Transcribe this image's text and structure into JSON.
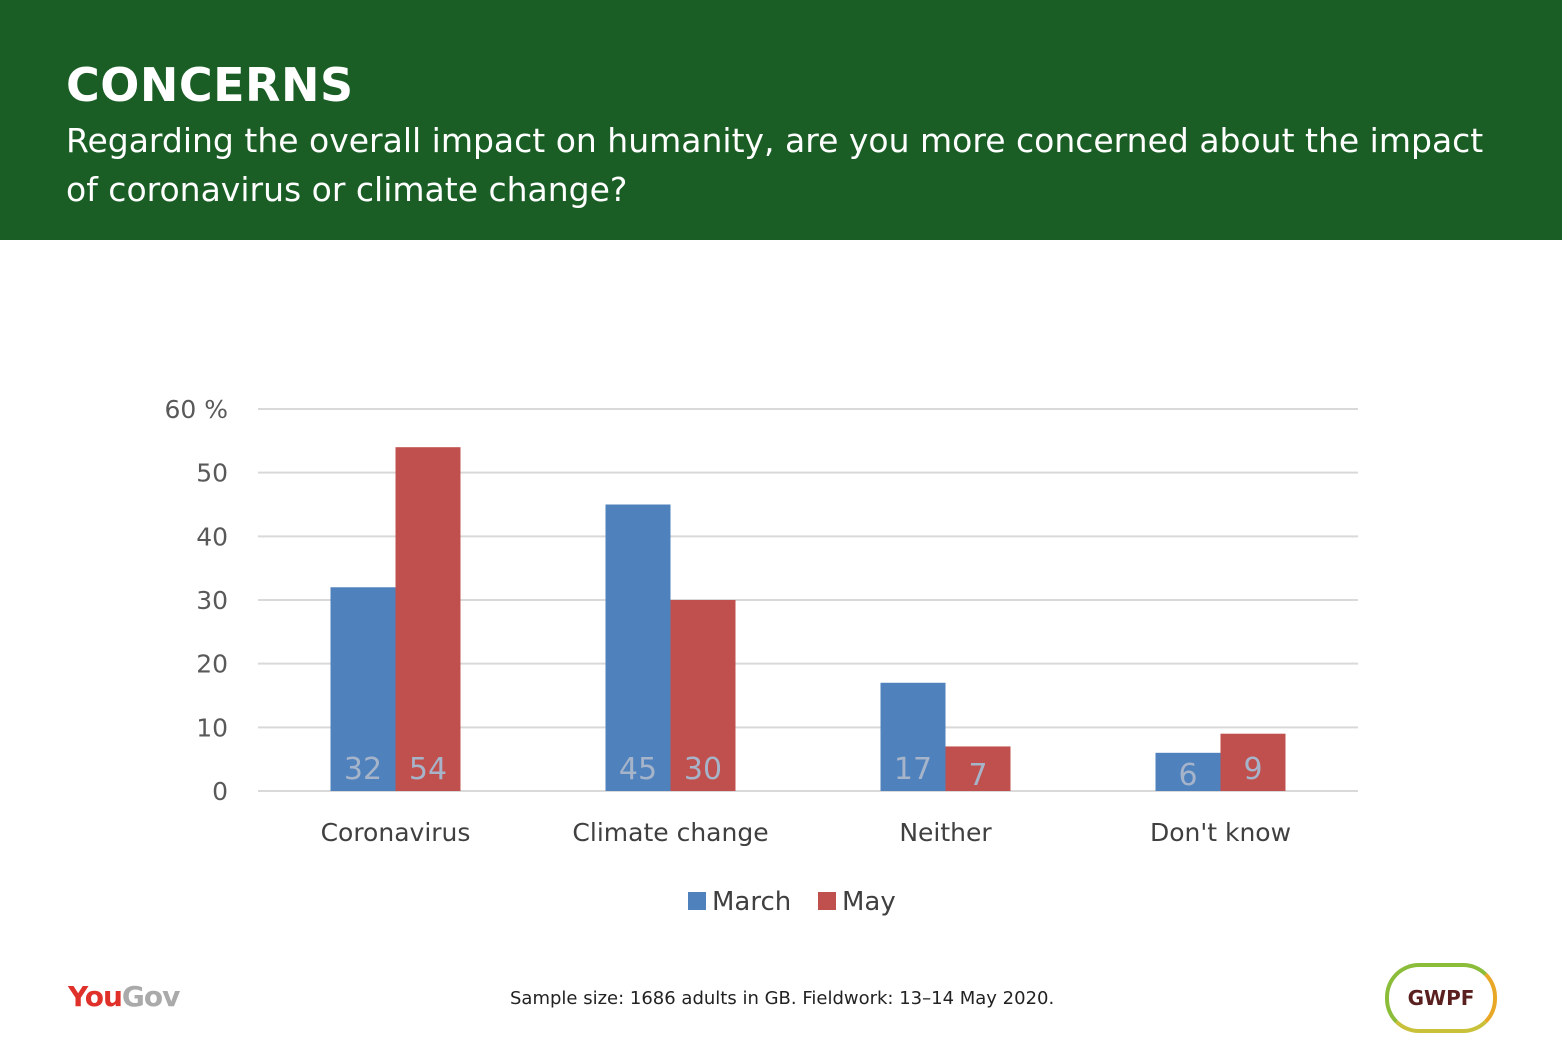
{
  "header": {
    "title": "CONCERNS",
    "subtitle": "Regarding the overall impact on humanity, are you more concerned about the impact of coronavirus or climate change?"
  },
  "chart_data": {
    "type": "bar",
    "categories": [
      "Coronavirus",
      "Climate change",
      "Neither",
      "Don't know"
    ],
    "series": [
      {
        "name": "March",
        "values": [
          32,
          45,
          17,
          6
        ],
        "color": "#4f81bd"
      },
      {
        "name": "May",
        "values": [
          54,
          30,
          7,
          9
        ],
        "color": "#c0504d"
      }
    ],
    "ylim": [
      0,
      60
    ],
    "yticks": [
      0,
      10,
      20,
      30,
      40,
      50,
      60
    ],
    "ytick_labels": [
      "0",
      "10",
      "20",
      "30",
      "40",
      "50",
      "60 %"
    ],
    "grid": true,
    "legend": "bottom-center"
  },
  "footer": {
    "note": "Sample size: 1686 adults in GB. Fieldwork: 13–14 May 2020.",
    "logo_left_part1": "You",
    "logo_left_part2": "Gov",
    "logo_right": "GWPF"
  },
  "colors": {
    "header_bg": "#1a5e26",
    "grid": "#d9d9d9"
  }
}
